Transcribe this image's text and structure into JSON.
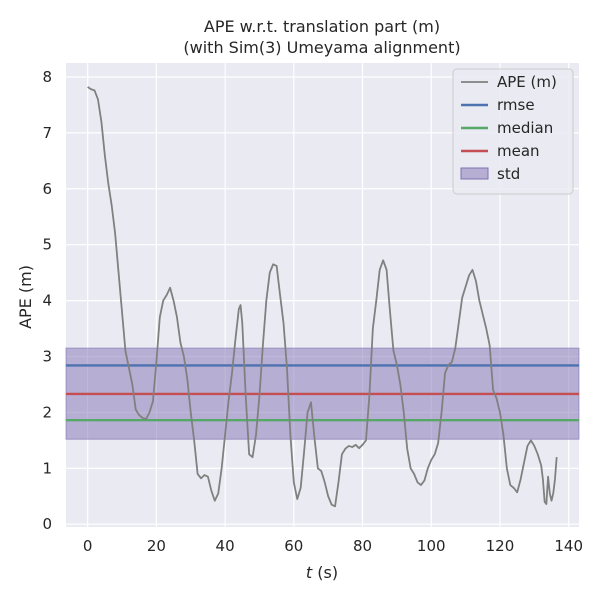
{
  "chart_data": {
    "type": "line",
    "title_line1": "APE w.r.t. translation part (m)",
    "title_line2": "(with Sim(3) Umeyama alignment)",
    "xlabel_var": "t",
    "xlabel_unit": " (s)",
    "ylabel": "APE (m)",
    "xlim": [
      -6.3,
      143
    ],
    "ylim": [
      -0.05,
      8.25
    ],
    "xticks": [
      0,
      20,
      40,
      60,
      80,
      100,
      120,
      140
    ],
    "yticks": [
      0,
      1,
      2,
      3,
      4,
      5,
      6,
      7,
      8
    ],
    "grid": true,
    "legend_position": "top-right",
    "rmse": 2.84,
    "median": 1.86,
    "mean": 2.33,
    "std_range": [
      1.52,
      3.15
    ],
    "legend": [
      {
        "label": "APE (m)",
        "kind": "line",
        "color": "#808080"
      },
      {
        "label": "rmse",
        "kind": "line",
        "color": "#4c72b0"
      },
      {
        "label": "median",
        "kind": "line",
        "color": "#55a868"
      },
      {
        "label": "mean",
        "kind": "line",
        "color": "#c44e52"
      },
      {
        "label": "std",
        "kind": "patch",
        "color": "#8172b3"
      }
    ],
    "series": [
      {
        "name": "APE (m)",
        "color": "#808080",
        "x": [
          0,
          1,
          2,
          3,
          4,
          5,
          6,
          7,
          8,
          9,
          10,
          11,
          12,
          13,
          14,
          15,
          16,
          17,
          18,
          19,
          20,
          21,
          22,
          23,
          24,
          25,
          26,
          27,
          28,
          29,
          30,
          31,
          32,
          33,
          34,
          35,
          36,
          37,
          38,
          39,
          40,
          41,
          42,
          43,
          44,
          44.5,
          45,
          46,
          47,
          48,
          49,
          50,
          51,
          52,
          53,
          54,
          55,
          56,
          57,
          58,
          59,
          60,
          61,
          62,
          63,
          64,
          65,
          66,
          67,
          68,
          69,
          70,
          71,
          72,
          73,
          74,
          75,
          76,
          77,
          78,
          79,
          80,
          81,
          82,
          83,
          84,
          85,
          86,
          87,
          88,
          89,
          90,
          91,
          92,
          93,
          94,
          95,
          96,
          97,
          98,
          99,
          100,
          101,
          102,
          103,
          104,
          105,
          106,
          107,
          108,
          109,
          110,
          111,
          112,
          113,
          114,
          115,
          116,
          117,
          118,
          119,
          120,
          121,
          122,
          123,
          124,
          125,
          126,
          127,
          128,
          129,
          130,
          131,
          132,
          132.5,
          133,
          133.5,
          134,
          134.5,
          135,
          135.5,
          136,
          136.5
        ],
        "values": [
          7.82,
          7.78,
          7.76,
          7.6,
          7.2,
          6.6,
          6.1,
          5.7,
          5.2,
          4.5,
          3.8,
          3.1,
          2.8,
          2.5,
          2.05,
          1.95,
          1.9,
          1.88,
          2.0,
          2.2,
          2.9,
          3.7,
          4.0,
          4.1,
          4.23,
          4.0,
          3.7,
          3.25,
          3.0,
          2.6,
          2.0,
          1.5,
          0.9,
          0.82,
          0.88,
          0.85,
          0.6,
          0.42,
          0.55,
          1.0,
          1.6,
          2.2,
          2.7,
          3.3,
          3.85,
          3.92,
          3.6,
          2.3,
          1.25,
          1.2,
          1.6,
          2.3,
          3.2,
          4.0,
          4.5,
          4.65,
          4.62,
          4.1,
          3.6,
          2.8,
          1.6,
          0.75,
          0.45,
          0.65,
          1.3,
          2.0,
          2.18,
          1.55,
          1.0,
          0.95,
          0.75,
          0.5,
          0.35,
          0.32,
          0.75,
          1.25,
          1.35,
          1.4,
          1.38,
          1.42,
          1.36,
          1.42,
          1.5,
          2.3,
          3.5,
          4.0,
          4.55,
          4.72,
          4.55,
          3.8,
          3.1,
          2.85,
          2.5,
          2.0,
          1.35,
          1.0,
          0.9,
          0.75,
          0.7,
          0.78,
          1.0,
          1.15,
          1.25,
          1.45,
          2.0,
          2.7,
          2.85,
          2.9,
          3.15,
          3.6,
          4.05,
          4.25,
          4.45,
          4.55,
          4.35,
          4.0,
          3.75,
          3.5,
          3.2,
          2.4,
          2.25,
          2.0,
          1.6,
          1.0,
          0.7,
          0.65,
          0.57,
          0.8,
          1.1,
          1.4,
          1.5,
          1.4,
          1.25,
          1.05,
          0.8,
          0.4,
          0.36,
          0.85,
          0.55,
          0.42,
          0.55,
          0.8,
          1.2
        ]
      }
    ]
  }
}
